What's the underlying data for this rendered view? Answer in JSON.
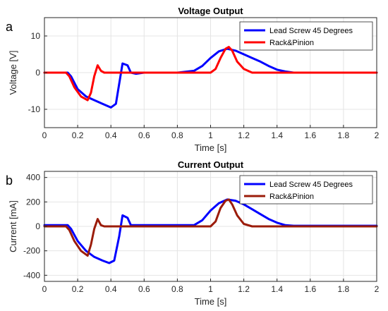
{
  "chart_data": [
    {
      "panel_label": "a",
      "type": "line",
      "title": "Voltage Output",
      "xlabel": "Time [s]",
      "ylabel": "Voltage [V]",
      "xlim": [
        0,
        2
      ],
      "ylim": [
        -15,
        15
      ],
      "xticks": [
        0,
        0.2,
        0.4,
        0.6,
        0.8,
        1,
        1.2,
        1.4,
        1.6,
        1.8,
        2
      ],
      "xtick_labels": [
        "0",
        "0.2",
        "0.4",
        "0.6",
        "0.8",
        "1",
        "1.2",
        "1.4",
        "1.6",
        "1.8",
        "2"
      ],
      "yticks": [
        -10,
        0,
        10
      ],
      "ytick_labels": [
        "-10",
        "0",
        "10"
      ],
      "grid": true,
      "legend_position": "top-right",
      "series": [
        {
          "name": "Lead Screw 45 Degrees",
          "color": "#0000ff",
          "x": [
            0,
            0.14,
            0.16,
            0.2,
            0.25,
            0.3,
            0.35,
            0.4,
            0.43,
            0.45,
            0.47,
            0.5,
            0.52,
            0.55,
            0.6,
            0.8,
            0.9,
            0.95,
            1.0,
            1.05,
            1.1,
            1.15,
            1.2,
            1.25,
            1.3,
            1.35,
            1.4,
            1.45,
            1.5,
            1.55,
            2.0
          ],
          "y": [
            0,
            0,
            -1,
            -4.5,
            -6.5,
            -7.5,
            -8.5,
            -9.5,
            -8.5,
            -3,
            2.5,
            2,
            0,
            -0.3,
            0,
            0,
            0.5,
            1.8,
            4,
            5.8,
            6.5,
            6,
            5,
            4,
            3,
            1.8,
            0.8,
            0.3,
            0,
            0,
            0
          ]
        },
        {
          "name": "Rack&Pinion",
          "color": "#ff0000",
          "x": [
            0,
            0.13,
            0.15,
            0.18,
            0.22,
            0.26,
            0.28,
            0.3,
            0.32,
            0.34,
            0.36,
            0.38,
            1.0,
            1.03,
            1.06,
            1.09,
            1.11,
            1.13,
            1.16,
            1.2,
            1.25,
            2.0
          ],
          "y": [
            0,
            0,
            -1,
            -4,
            -6.5,
            -7.5,
            -5.5,
            -1,
            2,
            0.5,
            0,
            0,
            0,
            1,
            4,
            6.5,
            7,
            6,
            3,
            1,
            0,
            0
          ]
        }
      ]
    },
    {
      "panel_label": "b",
      "type": "line",
      "title": "Current Output",
      "xlabel": "Time [s]",
      "ylabel": "Current [mA]",
      "xlim": [
        0,
        2
      ],
      "ylim": [
        -450,
        450
      ],
      "xticks": [
        0,
        0.2,
        0.4,
        0.6,
        0.8,
        1,
        1.2,
        1.4,
        1.6,
        1.8,
        2
      ],
      "xtick_labels": [
        "0",
        "0.2",
        "0.4",
        "0.6",
        "0.8",
        "1",
        "1.2",
        "1.4",
        "1.6",
        "1.8",
        "2"
      ],
      "yticks": [
        -400,
        -200,
        0,
        200,
        400
      ],
      "ytick_labels": [
        "-400",
        "-200",
        "0",
        "200",
        "400"
      ],
      "grid": true,
      "legend_position": "top-right",
      "series": [
        {
          "name": "Lead Screw 45 Degrees",
          "color": "#0000ff",
          "x": [
            0,
            0.14,
            0.16,
            0.2,
            0.25,
            0.3,
            0.35,
            0.39,
            0.42,
            0.45,
            0.47,
            0.5,
            0.52,
            0.55,
            0.9,
            0.95,
            1.0,
            1.05,
            1.1,
            1.15,
            1.2,
            1.25,
            1.3,
            1.35,
            1.4,
            1.45,
            1.5,
            2.0
          ],
          "y": [
            10,
            10,
            -20,
            -120,
            -200,
            -250,
            -280,
            -300,
            -280,
            -80,
            90,
            70,
            10,
            10,
            10,
            50,
            130,
            190,
            220,
            210,
            180,
            140,
            100,
            60,
            30,
            10,
            5,
            5
          ]
        },
        {
          "name": "Rack&Pinion",
          "color": "#9b1c0a",
          "x": [
            0,
            0.13,
            0.15,
            0.18,
            0.22,
            0.26,
            0.28,
            0.3,
            0.32,
            0.34,
            0.36,
            1.0,
            1.03,
            1.06,
            1.09,
            1.11,
            1.13,
            1.16,
            1.2,
            1.25,
            2.0
          ],
          "y": [
            0,
            0,
            -30,
            -120,
            -200,
            -240,
            -150,
            -20,
            60,
            10,
            0,
            0,
            40,
            150,
            210,
            220,
            180,
            90,
            20,
            0,
            0
          ]
        }
      ]
    }
  ]
}
